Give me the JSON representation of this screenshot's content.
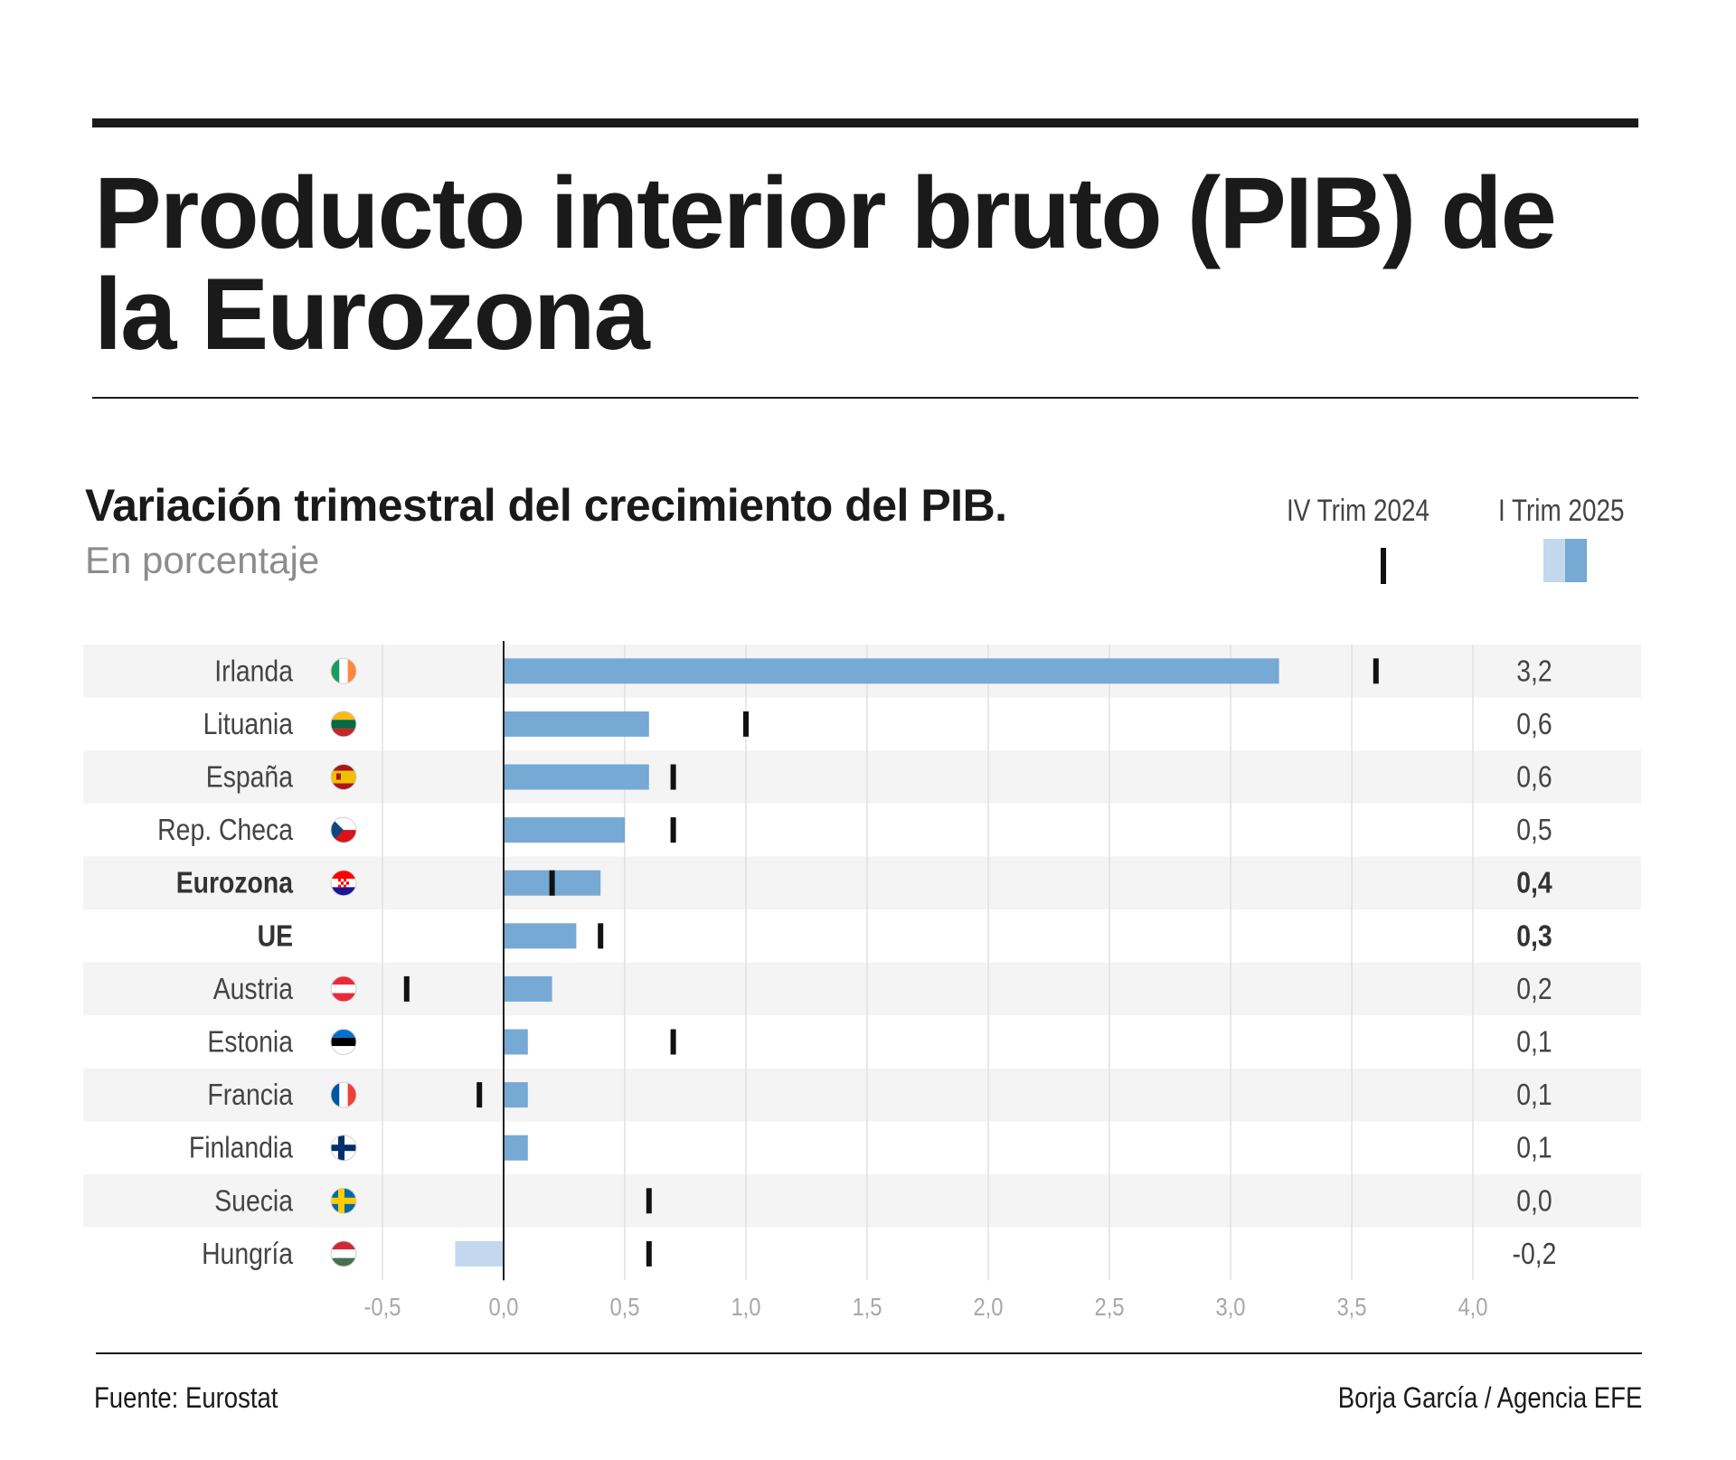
{
  "header": {
    "title": "Producto interior bruto (PIB) de la Eurozona",
    "subtitle": "Variación trimestral del crecimiento del PIB.",
    "unit": "En porcentaje"
  },
  "legend": {
    "prev_label": "IV Trim 2024",
    "curr_label": "I Trim 2025"
  },
  "footer": {
    "source": "Fuente: Eurostat",
    "credit": "Borja García / Agencia EFE"
  },
  "colors": {
    "bar_positive": "#76a9d4",
    "bar_negative": "#c3d8ec",
    "marker": "#111111",
    "row_stripe": "#f4f4f4",
    "grid": "#e0e0e0",
    "tick_label": "#a8a8a8"
  },
  "chart_data": {
    "type": "bar",
    "orientation": "horizontal",
    "title": "Variación trimestral del crecimiento del PIB.",
    "subtitle": "En porcentaje",
    "xlim": [
      -0.5,
      4.0
    ],
    "ticks": [
      -0.5,
      0.0,
      0.5,
      1.0,
      1.5,
      2.0,
      2.5,
      3.0,
      3.5,
      4.0
    ],
    "tick_labels": [
      "-0,5",
      "0,0",
      "0,5",
      "1,0",
      "1,5",
      "2,0",
      "2,5",
      "3,0",
      "3,5",
      "4,0"
    ],
    "grid": true,
    "legend_position": "top-right",
    "categories": [
      {
        "label": "Irlanda",
        "flag": "ireland-flag-icon",
        "value": 3.2,
        "value_label": "3,2",
        "prev": 3.6,
        "bold": false
      },
      {
        "label": "Lituania",
        "flag": "lithuania-flag-icon",
        "value": 0.6,
        "value_label": "0,6",
        "prev": 1.0,
        "bold": false
      },
      {
        "label": "España",
        "flag": "spain-flag-icon",
        "value": 0.6,
        "value_label": "0,6",
        "prev": 0.7,
        "bold": false
      },
      {
        "label": "Rep. Checa",
        "flag": "czechia-flag-icon",
        "value": 0.5,
        "value_label": "0,5",
        "prev": 0.7,
        "bold": false
      },
      {
        "label": "Eurozona",
        "flag": "croatia-flag-icon",
        "value": 0.4,
        "value_label": "0,4",
        "prev": 0.2,
        "bold": true
      },
      {
        "label": "UE",
        "flag": "",
        "value": 0.3,
        "value_label": "0,3",
        "prev": 0.4,
        "bold": true
      },
      {
        "label": "Austria",
        "flag": "austria-flag-icon",
        "value": 0.2,
        "value_label": "0,2",
        "prev": -0.4,
        "bold": false
      },
      {
        "label": "Estonia",
        "flag": "estonia-flag-icon",
        "value": 0.1,
        "value_label": "0,1",
        "prev": 0.7,
        "bold": false
      },
      {
        "label": "Francia",
        "flag": "france-flag-icon",
        "value": 0.1,
        "value_label": "0,1",
        "prev": -0.1,
        "bold": false
      },
      {
        "label": "Finlandia",
        "flag": "finland-flag-icon",
        "value": 0.1,
        "value_label": "0,1",
        "prev": null,
        "bold": false
      },
      {
        "label": "Suecia",
        "flag": "sweden-flag-icon",
        "value": 0.0,
        "value_label": "0,0",
        "prev": 0.6,
        "bold": false
      },
      {
        "label": "Hungría",
        "flag": "hungary-flag-icon",
        "value": -0.2,
        "value_label": "-0,2",
        "prev": 0.6,
        "bold": false
      }
    ],
    "series": [
      {
        "name": "I Trim 2025",
        "kind": "bar"
      },
      {
        "name": "IV Trim 2024",
        "kind": "marker"
      }
    ]
  }
}
